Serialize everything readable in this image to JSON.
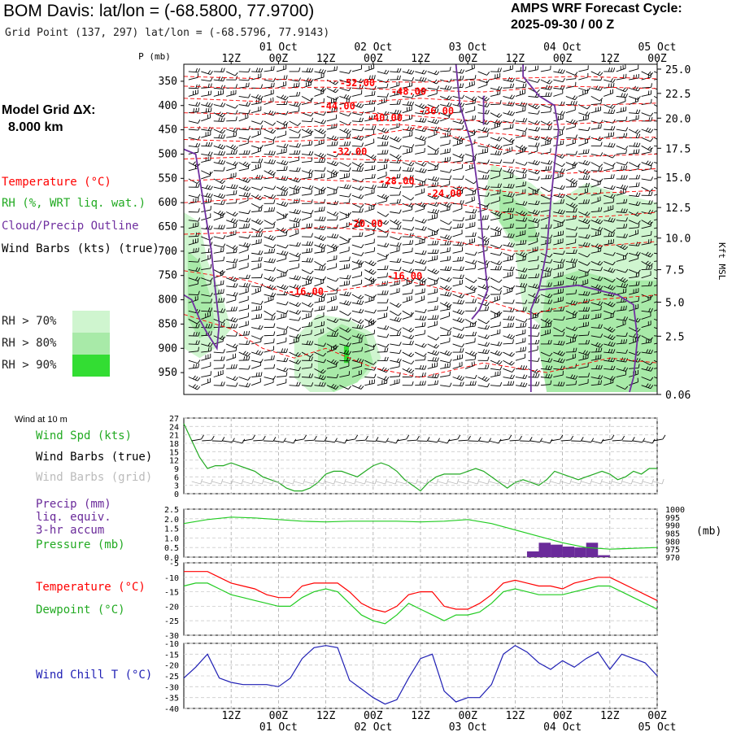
{
  "header": {
    "title": "BOM Davis:  lat/lon = (-68.5800, 77.9700)",
    "grid_point": "Grid Point (137, 297) lat/lon = (-68.5796, 77.9143)",
    "cycle_label": "AMPS WRF Forecast Cycle:",
    "cycle_value": "2025-09-30 / 00  Z",
    "model_grid_label": "Model Grid ΔX:",
    "model_grid_value": "8.000 km"
  },
  "colors": {
    "temperature": "#ff0000",
    "rh": "#22aa22",
    "cloud": "#7030a0",
    "wind": "#000000",
    "wind_grid": "#bbbbbb",
    "precip": "#6a2a9a",
    "pressure": "#22cc22",
    "dewpoint": "#22cc22",
    "windchill": "#1f1fb4",
    "rh70": "#cff5cf",
    "rh80": "#a8eaa8",
    "rh90": "#33dd33"
  },
  "legend": {
    "temperature": "Temperature (°C)",
    "rh": "RH (%, WRT liq. wat.)",
    "cloud": "Cloud/Precip Outline",
    "wind": "Wind Barbs (kts) (true)",
    "rh70": "RH > 70%",
    "rh80": "RH > 80%",
    "rh90": "RH > 90%"
  },
  "time_axis": {
    "hour_labels": [
      "12Z",
      "00Z",
      "12Z",
      "00Z",
      "12Z",
      "00Z",
      "12Z",
      "00Z",
      "12Z",
      "00Z"
    ],
    "hour_positions": [
      6,
      12,
      18,
      24,
      30,
      36,
      42,
      48,
      54,
      60
    ],
    "date_labels": [
      "01 Oct",
      "02 Oct",
      "03 Oct",
      "04 Oct",
      "05 Oct"
    ],
    "date_positions": [
      12,
      24,
      36,
      48,
      60
    ],
    "t_start": 0,
    "t_end": 60
  },
  "chart_data": [
    {
      "type": "contour",
      "name": "cross-section",
      "ylabel": "P (mb)",
      "ylabel_right": "Kft MSL",
      "p_ticks": [
        "350",
        "400",
        "450",
        "500",
        "550",
        "600",
        "650",
        "700",
        "750",
        "800",
        "850",
        "900",
        "950"
      ],
      "p_range": [
        315,
        995
      ],
      "height_ticks": [
        "25.0",
        "22.5",
        "20.0",
        "17.5",
        "15.0",
        "12.5",
        "10.0",
        "7.5",
        "5.0",
        "2.5",
        "0.06"
      ],
      "height_tick_pressures": [
        325,
        375,
        426,
        488,
        548,
        610,
        673,
        738,
        805,
        875,
        995
      ],
      "temp_labels": [
        {
          "text": "-52.00",
          "t": 22,
          "p": 360
        },
        {
          "text": "-48.00",
          "t": 28.5,
          "p": 378
        },
        {
          "text": "-44.00",
          "t": 19.5,
          "p": 408
        },
        {
          "text": "-40.00",
          "t": 25.5,
          "p": 432
        },
        {
          "text": "-36.00",
          "t": 32,
          "p": 418
        },
        {
          "text": "-32.00",
          "t": 21,
          "p": 502
        },
        {
          "text": "-28.00",
          "t": 27,
          "p": 562
        },
        {
          "text": "-24.00",
          "t": 33,
          "p": 588
        },
        {
          "text": "-20.00",
          "t": 23,
          "p": 650
        },
        {
          "text": "-16.00",
          "t": 15.5,
          "p": 790
        },
        {
          "text": "-16.00",
          "t": 28,
          "p": 758
        }
      ]
    },
    {
      "type": "line",
      "name": "wind-10m",
      "title": "Wind at 10 m",
      "labels": [
        "Wind Spd (kts)",
        "Wind Barbs (true)",
        "Wind Barbs (grid)"
      ],
      "yticks": [
        "27",
        "24",
        "21",
        "18",
        "15",
        "12",
        "9",
        "6",
        "3",
        "0"
      ],
      "ylim": [
        0,
        27
      ],
      "x": [
        0,
        1,
        2,
        3,
        4,
        5,
        6,
        7,
        8,
        9,
        10,
        11,
        12,
        13,
        14,
        15,
        16,
        17,
        18,
        19,
        20,
        21,
        22,
        23,
        24,
        25,
        26,
        27,
        28,
        29,
        30,
        31,
        32,
        33,
        34,
        35,
        36,
        37,
        38,
        39,
        40,
        41,
        42,
        43,
        44,
        45,
        46,
        47,
        48,
        49,
        50,
        51,
        52,
        53,
        54,
        55,
        56,
        57,
        58,
        59,
        60
      ],
      "series": [
        {
          "name": "Wind Spd (kts)",
          "values": [
            25,
            19,
            13,
            9,
            10,
            10,
            11,
            10,
            9,
            8,
            6,
            5,
            4,
            2,
            1,
            1,
            2,
            4,
            7,
            8,
            8,
            7,
            6,
            8,
            10,
            11,
            10,
            8,
            5,
            3,
            1,
            4,
            6,
            7,
            7,
            7,
            8,
            9,
            8,
            6,
            4,
            2,
            4,
            5,
            4,
            3,
            5,
            8,
            7,
            6,
            5,
            6,
            7,
            8,
            7,
            5,
            6,
            8,
            7,
            9,
            9
          ]
        }
      ]
    },
    {
      "type": "bar",
      "name": "precip-pressure",
      "labels": [
        "Precip (mm)",
        "liq. equiv.",
        "3-hr accum",
        "Pressure (mb)"
      ],
      "yticks_left": [
        "2.5",
        "2.0",
        "1.5",
        "1.0",
        "0.5",
        "0.0"
      ],
      "ylim_left": [
        0,
        2.5
      ],
      "yticks_right": [
        "1000",
        "995",
        "990",
        "985",
        "980",
        "975",
        "970"
      ],
      "ylim_right": [
        970,
        1000
      ],
      "ylabel_right": "(mb)",
      "precip_x": [
        43.5,
        45,
        46.5,
        48,
        49.5,
        51,
        52.5
      ],
      "precip_values": [
        0.3,
        0.75,
        0.65,
        0.55,
        0.5,
        0.75,
        0.1
      ],
      "pressure_x": [
        0,
        3,
        6,
        9,
        12,
        15,
        18,
        21,
        24,
        27,
        30,
        33,
        36,
        39,
        42,
        45,
        48,
        51,
        54,
        57,
        60
      ],
      "pressure_values": [
        991,
        993.5,
        995,
        994.5,
        993.5,
        992.5,
        992,
        992.5,
        992.5,
        992.5,
        992,
        992.5,
        993.5,
        991,
        987,
        983,
        979,
        976,
        975,
        975.5,
        976
      ]
    },
    {
      "type": "line",
      "name": "temperature-dewpoint",
      "labels": [
        "Temperature (°C)",
        "Dewpoint (°C)"
      ],
      "yticks": [
        "-5",
        "-10",
        "-15",
        "-20",
        "-25",
        "-30"
      ],
      "ylim": [
        -30,
        -5
      ],
      "x": [
        0,
        1.5,
        3,
        4.5,
        6,
        7.5,
        9,
        10.5,
        12,
        13.5,
        15,
        16.5,
        18,
        19.5,
        21,
        22.5,
        24,
        25.5,
        27,
        28.5,
        30,
        31.5,
        33,
        34.5,
        36,
        37.5,
        39,
        40.5,
        42,
        43.5,
        45,
        46.5,
        48,
        49.5,
        51,
        52.5,
        54,
        55.5,
        57,
        58.5,
        60
      ],
      "series": [
        {
          "name": "Temperature (°C)",
          "values": [
            -8,
            -8,
            -8,
            -10,
            -12,
            -13,
            -14,
            -16,
            -17,
            -17,
            -13,
            -12,
            -12,
            -12,
            -15,
            -19,
            -21,
            -22,
            -20,
            -16,
            -15,
            -15,
            -20,
            -21,
            -21,
            -19,
            -16,
            -12,
            -11,
            -12,
            -13,
            -13,
            -14,
            -12,
            -11,
            -10,
            -10,
            -12,
            -14,
            -16,
            -18
          ]
        },
        {
          "name": "Dewpoint (°C)",
          "values": [
            -13,
            -12,
            -12,
            -14,
            -16,
            -17,
            -18,
            -19,
            -20,
            -20,
            -17,
            -15,
            -14,
            -15,
            -19,
            -23,
            -25,
            -26,
            -23,
            -19,
            -21,
            -23,
            -25,
            -23,
            -23,
            -22,
            -19,
            -15,
            -14,
            -15,
            -16,
            -16,
            -16,
            -15,
            -14,
            -13,
            -13,
            -15,
            -17,
            -19,
            -21
          ]
        }
      ]
    },
    {
      "type": "line",
      "name": "wind-chill",
      "labels": [
        "Wind Chill T (°C)"
      ],
      "yticks": [
        "-10",
        "-15",
        "-20",
        "-25",
        "-30",
        "-35",
        "-40"
      ],
      "ylim": [
        -40,
        -10
      ],
      "x": [
        0,
        1.5,
        3,
        4.5,
        6,
        7.5,
        9,
        10.5,
        12,
        13.5,
        15,
        16.5,
        18,
        19.5,
        21,
        22.5,
        24,
        25.5,
        27,
        28.5,
        30,
        31.5,
        33,
        34.5,
        36,
        37.5,
        39,
        40.5,
        42,
        43.5,
        45,
        46.5,
        48,
        49.5,
        51,
        52.5,
        54,
        55.5,
        57,
        58.5,
        60
      ],
      "series": [
        {
          "name": "Wind Chill T (°C)",
          "values": [
            -26,
            -21,
            -15,
            -26,
            -28,
            -29,
            -29,
            -29,
            -30,
            -26,
            -17,
            -12,
            -11,
            -12,
            -27,
            -31,
            -35,
            -38,
            -36,
            -26,
            -17,
            -15,
            -32,
            -37,
            -35,
            -35,
            -29,
            -15,
            -11,
            -14,
            -19,
            -22,
            -18,
            -21,
            -17,
            -14,
            -22,
            -15,
            -17,
            -19,
            -25
          ]
        }
      ]
    }
  ]
}
